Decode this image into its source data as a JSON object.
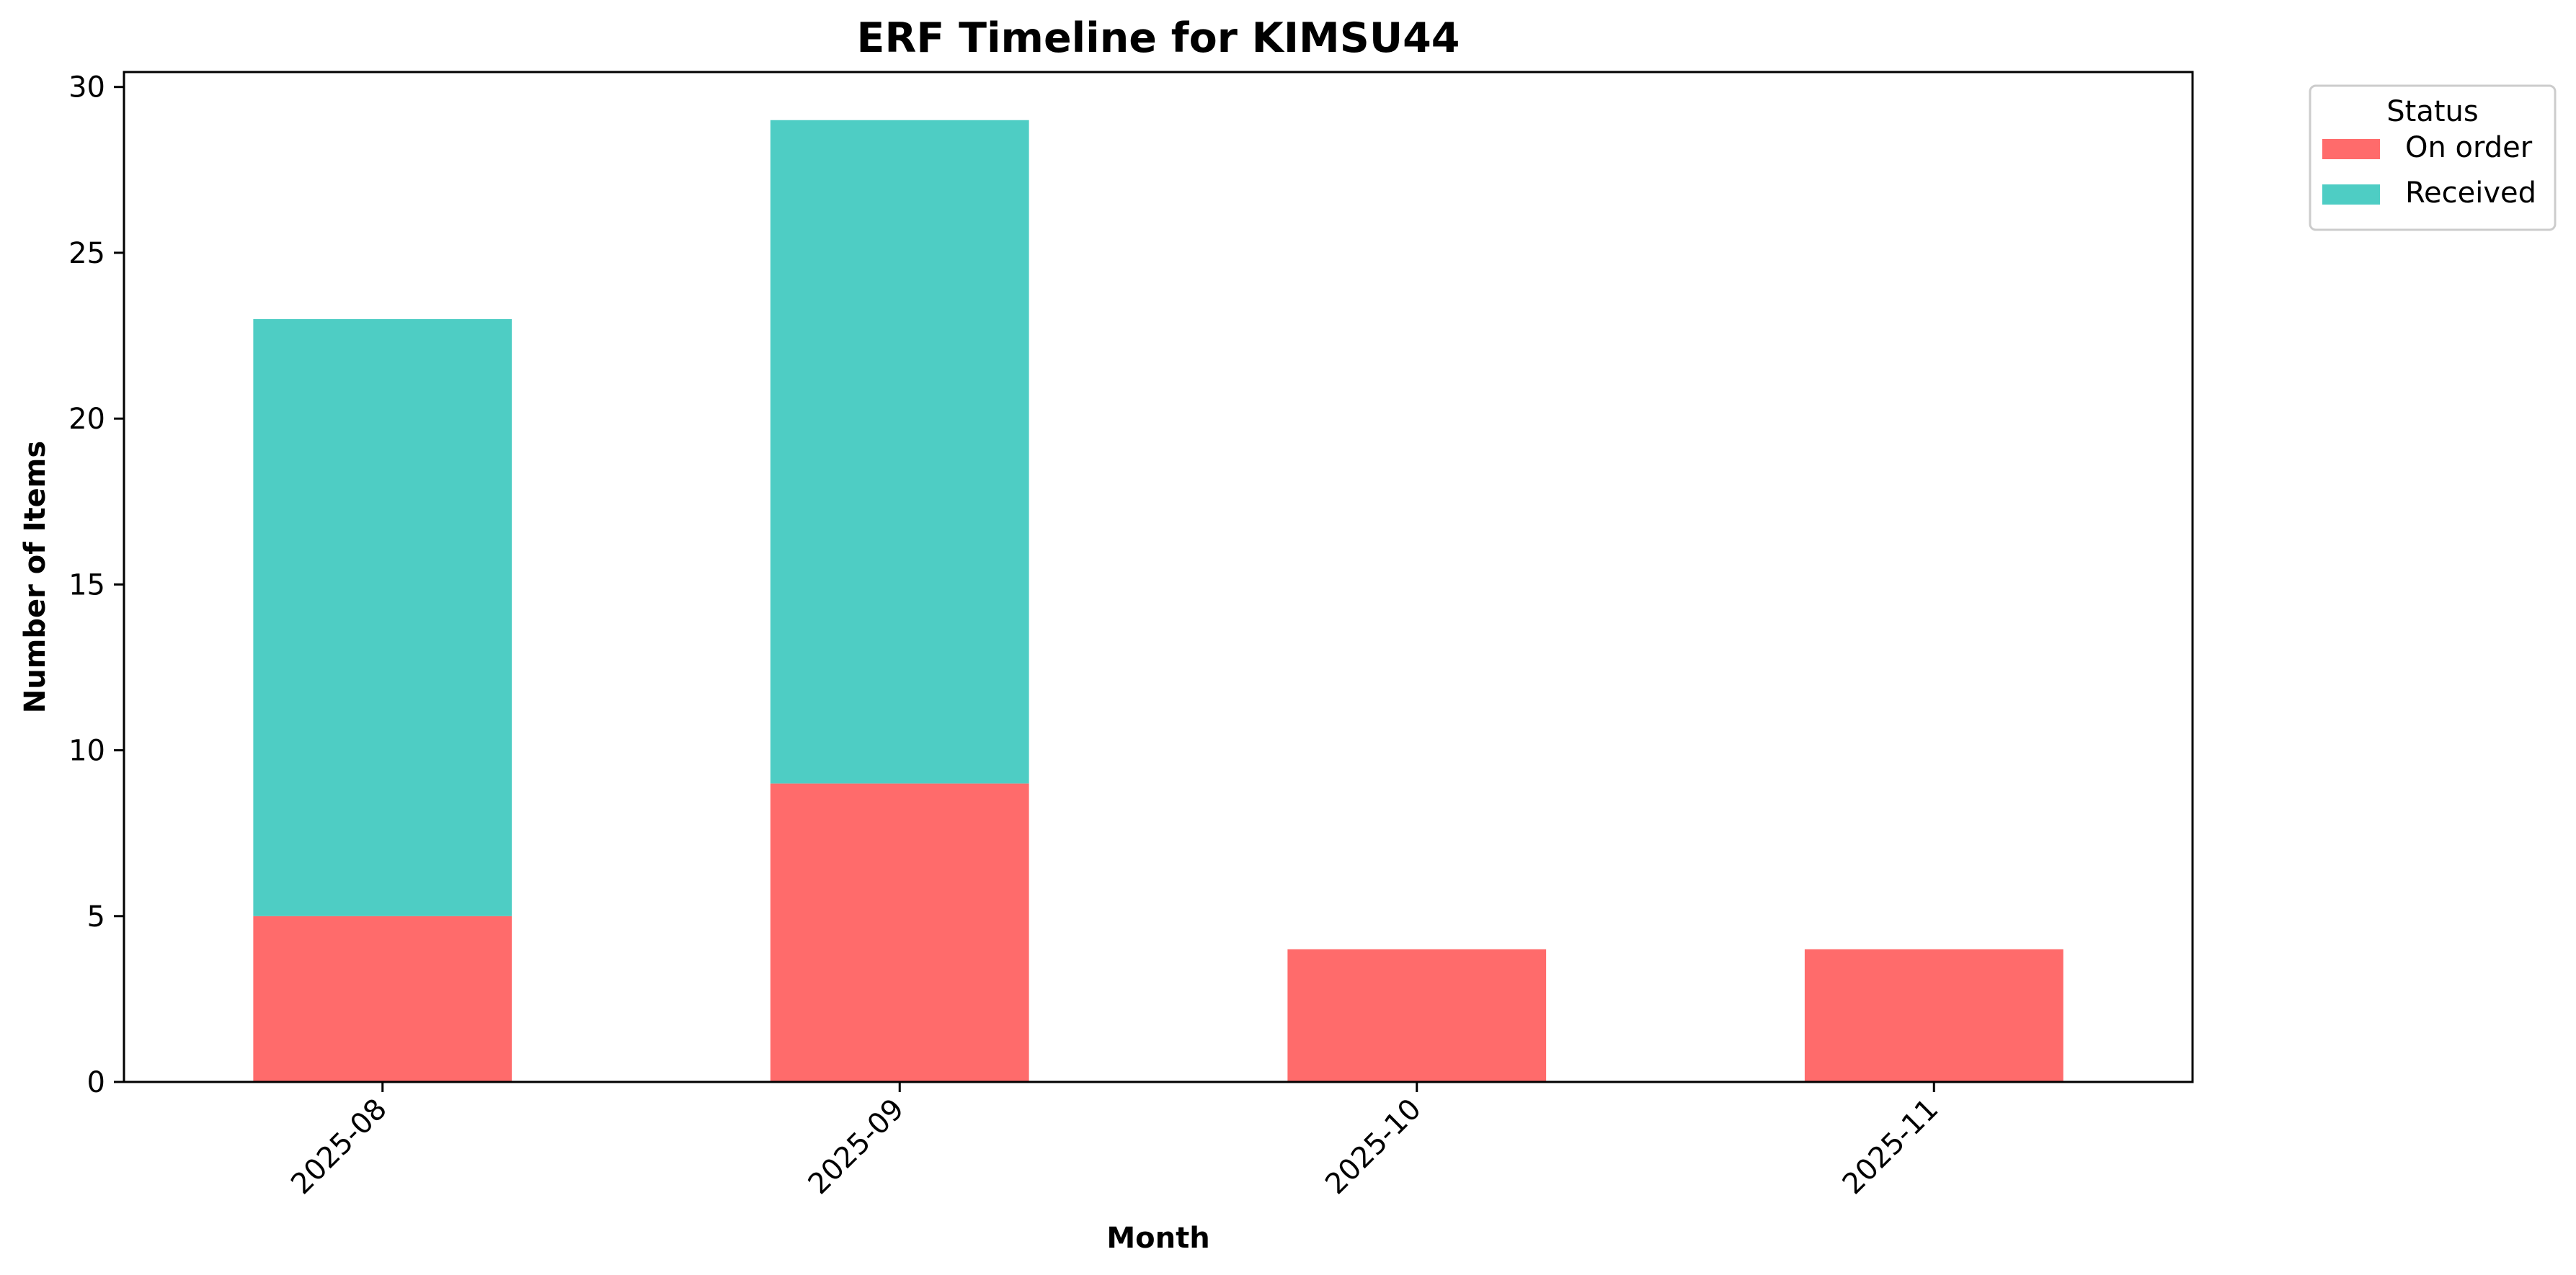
{
  "chart_data": {
    "type": "bar",
    "stacked": true,
    "title": "ERF Timeline for KIMSU44",
    "xlabel": "Month",
    "ylabel": "Number of Items",
    "categories": [
      "2025-08",
      "2025-09",
      "2025-10",
      "2025-11"
    ],
    "series": [
      {
        "name": "On order",
        "values": [
          5,
          9,
          4,
          4
        ],
        "color": "#ff6b6b"
      },
      {
        "name": "Received",
        "values": [
          18,
          20,
          0,
          0
        ],
        "color": "#4ecdc4"
      }
    ],
    "ylim": [
      0,
      30.45
    ],
    "yticks": [
      "0",
      "5",
      "10",
      "15",
      "20",
      "25",
      "30"
    ],
    "grid": false,
    "legend": {
      "title": "Status",
      "placement": "outside top-right"
    }
  }
}
